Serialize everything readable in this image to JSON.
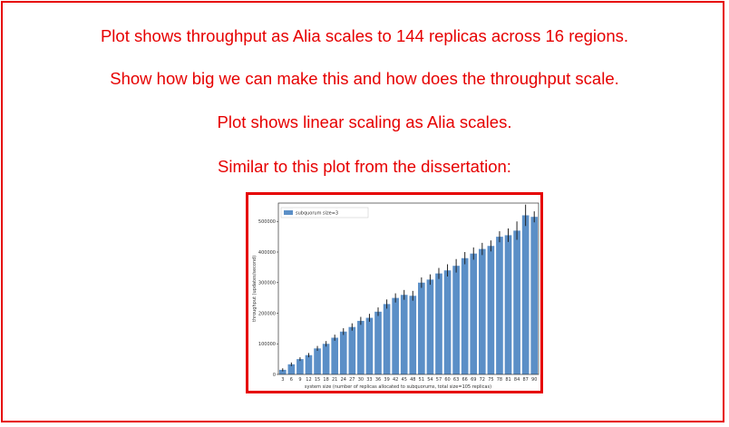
{
  "notes": [
    "Plot shows throughput as Alia scales to 144 replicas across 16 regions.",
    "Show how big we can make this and how does the throughput scale.",
    "Plot shows linear scaling as Alia scales.",
    "Similar to this plot from the dissertation:"
  ],
  "colors": {
    "annotation": "#e60000",
    "bar": "#5b8fc7",
    "error_bar": "#222222"
  },
  "chart_data": {
    "type": "bar",
    "title": "",
    "xlabel": "system size (number of replicas allocated to subquorums, total size=105 replicas)",
    "ylabel": "throughput (updates/second)",
    "ylim": [
      0,
      560000
    ],
    "yticks": [
      0,
      100000,
      200000,
      300000,
      400000,
      500000
    ],
    "grid": false,
    "legend_position": "top-left",
    "categories": [
      "3",
      "6",
      "9",
      "12",
      "15",
      "18",
      "21",
      "24",
      "27",
      "30",
      "33",
      "36",
      "39",
      "42",
      "45",
      "48",
      "51",
      "54",
      "57",
      "60",
      "63",
      "66",
      "69",
      "72",
      "75",
      "78",
      "81",
      "84",
      "87",
      "90"
    ],
    "series": [
      {
        "name": "subquorum size=3",
        "values": [
          15000,
          33000,
          50000,
          63000,
          85000,
          100000,
          120000,
          140000,
          155000,
          175000,
          185000,
          205000,
          230000,
          250000,
          260000,
          257000,
          300000,
          310000,
          330000,
          340000,
          355000,
          380000,
          395000,
          410000,
          420000,
          450000,
          455000,
          470000,
          520000,
          515000
        ],
        "errors": [
          5000,
          6000,
          6000,
          7000,
          8000,
          9000,
          10000,
          11000,
          12000,
          13000,
          13000,
          14000,
          15000,
          15000,
          16000,
          16000,
          17000,
          17000,
          18000,
          20000,
          22000,
          20000,
          20000,
          20000,
          18000,
          18000,
          22000,
          30000,
          35000,
          18000
        ]
      }
    ]
  }
}
